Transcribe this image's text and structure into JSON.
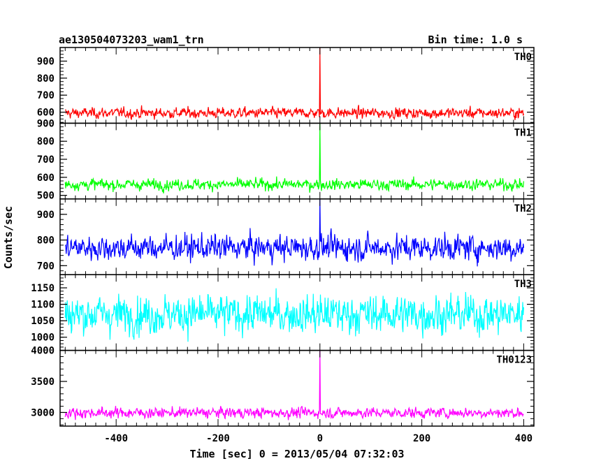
{
  "chart_data": {
    "type": "line",
    "title": "ae130504073203_wam1_trn",
    "subtitle": "Bin time: 1.0 s",
    "xlabel": "Time [sec] 0 = 2013/05/04 07:32:03",
    "ylabel": "Counts/sec",
    "xlim": [
      -510,
      420
    ],
    "x_ticks": [
      -400,
      -200,
      0,
      200,
      400
    ],
    "x_range_data": [
      -500,
      400
    ],
    "grid": false,
    "panels": [
      {
        "name": "TH0",
        "color": "#ff0000",
        "ylim": [
          535,
          980
        ],
        "y_ticks": [
          600,
          700,
          800,
          900
        ],
        "mean": 595,
        "sigma": 20,
        "spike_x": 0,
        "spike_y": 980
      },
      {
        "name": "TH1",
        "color": "#00ff00",
        "ylim": [
          480,
          900
        ],
        "y_ticks": [
          500,
          600,
          700,
          800,
          900
        ],
        "mean": 560,
        "sigma": 20,
        "spike_x": 0,
        "spike_y": 900
      },
      {
        "name": "TH2",
        "color": "#0000ff",
        "ylim": [
          665,
          960
        ],
        "y_ticks": [
          700,
          800,
          900
        ],
        "mean": 770,
        "sigma": 32,
        "spike_x": 0,
        "spike_y": 960
      },
      {
        "name": "TH3",
        "color": "#00ffff",
        "ylim": [
          960,
          1190
        ],
        "y_ticks": [
          1000,
          1050,
          1100,
          1150
        ],
        "mean": 1070,
        "sigma": 38,
        "spike_x": null,
        "spike_y": null
      },
      {
        "name": "TH0123",
        "color": "#ff00ff",
        "ylim": [
          2780,
          4000
        ],
        "y_ticks": [
          3000,
          3500,
          4000
        ],
        "mean": 2995,
        "sigma": 55,
        "spike_x": 0,
        "spike_y": 4000
      }
    ]
  }
}
